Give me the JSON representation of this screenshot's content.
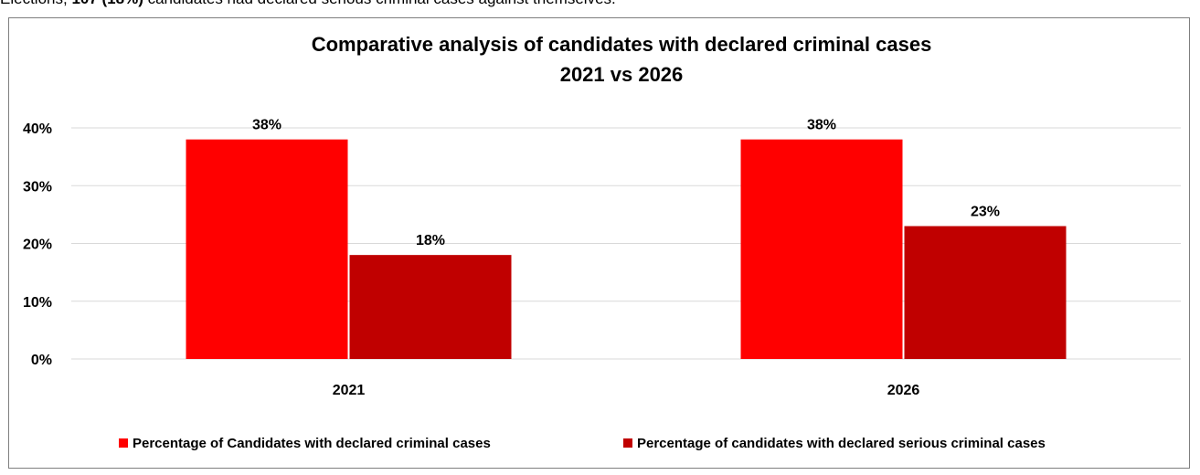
{
  "intro_text": {
    "before": "Elections, ",
    "bold": "107 (18%)",
    "after": " candidates had declared serious criminal cases against themselves."
  },
  "chart_data": {
    "type": "bar",
    "title": "Comparative analysis of candidates with declared criminal cases",
    "subtitle": "2021 vs 2026",
    "categories": [
      "2021",
      "2026"
    ],
    "series": [
      {
        "name": "Percentage of Candidates with declared criminal cases",
        "values": [
          38,
          38
        ],
        "labels": [
          "38%",
          "38%"
        ],
        "color": "#ff0000"
      },
      {
        "name": "Percentage of candidates with declared serious criminal cases",
        "values": [
          18,
          23
        ],
        "labels": [
          "18%",
          "23%"
        ],
        "color": "#c00000"
      }
    ],
    "yticks": [
      "0%",
      "10%",
      "20%",
      "30%",
      "40%"
    ],
    "ylim": [
      0,
      40
    ],
    "grid": true,
    "legend": "bottom",
    "gridline_color": "#d9d9d9"
  }
}
